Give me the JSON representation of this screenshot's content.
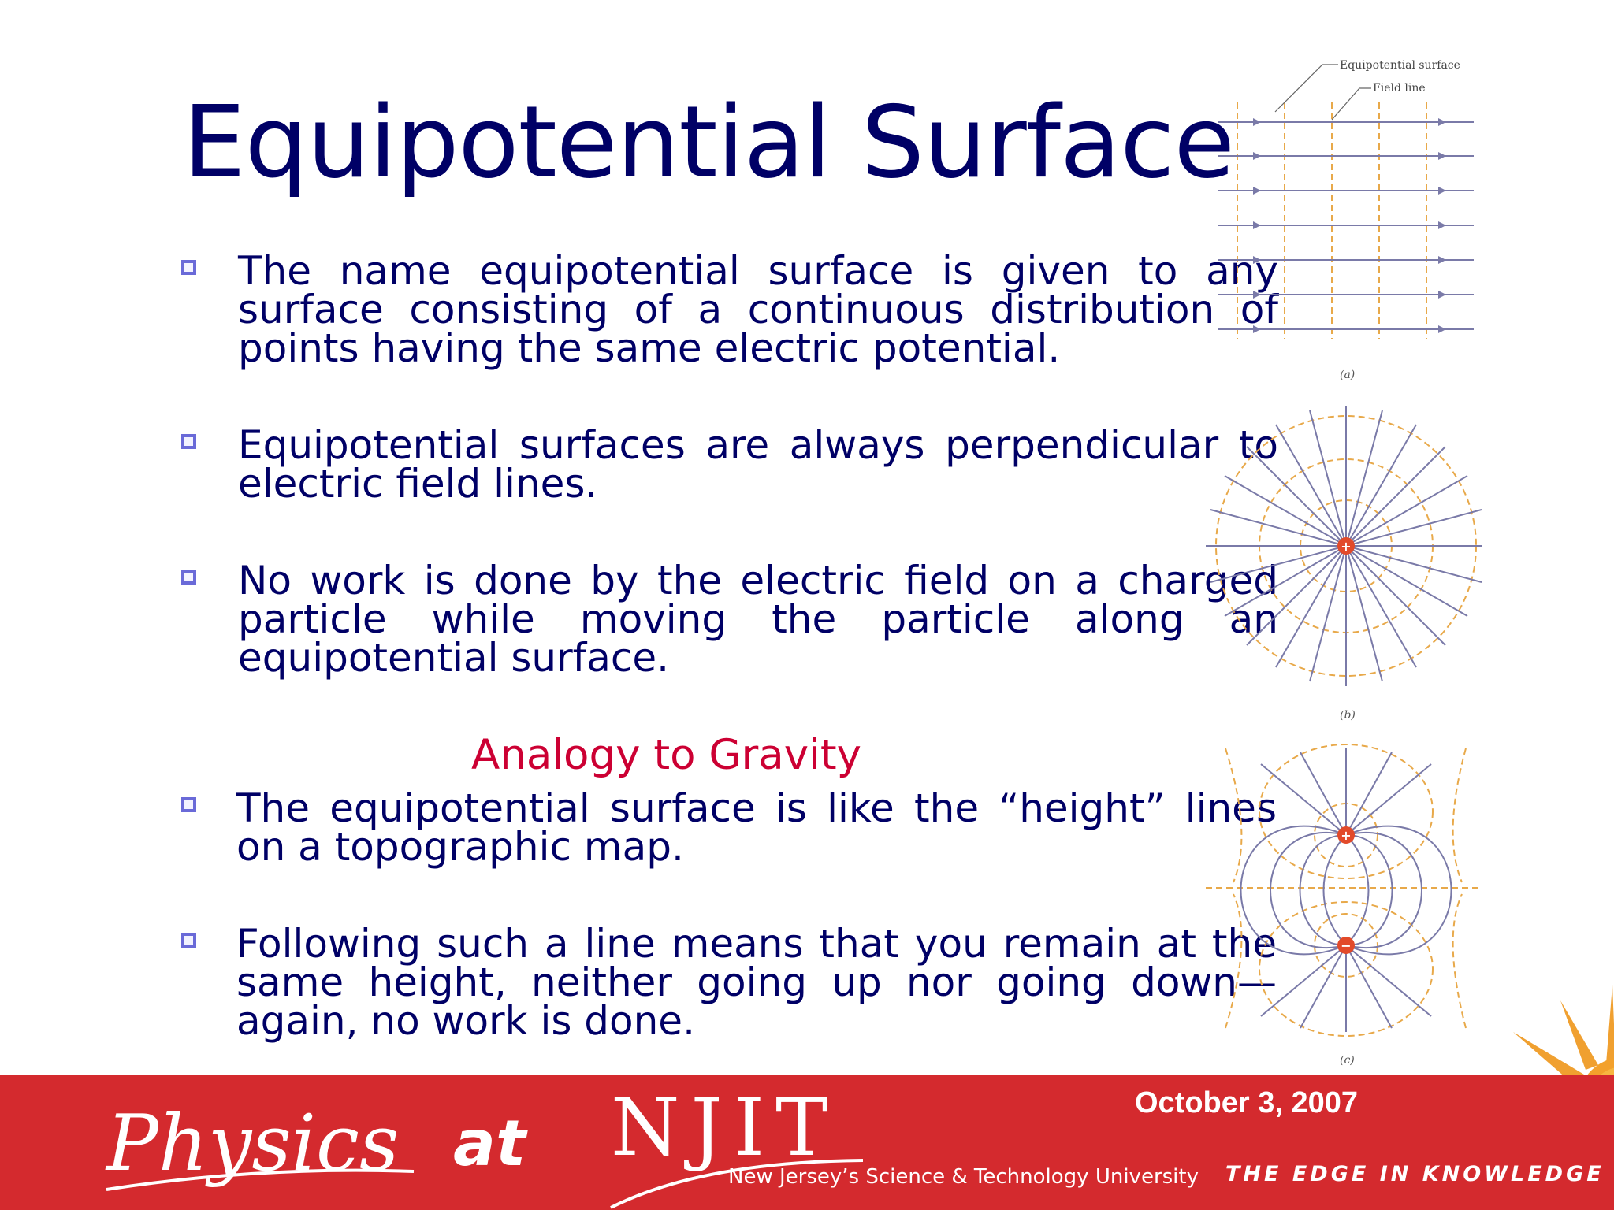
{
  "title": "Equipotential Surface",
  "bullets": [
    "The name equipotential surface is given to any surface consisting of a continuous distribution of points having the same electric potential.",
    "Equipotential surfaces are always perpendicular to electric field lines.",
    "No work is done by the electric field on a charged particle while moving the particle along an equipotential surface."
  ],
  "subheading": "Analogy to Gravity",
  "gravity_bullets": [
    "The equipotential surface is like the “height” lines on a topographic map.",
    "Following such a line means that you remain at the same height, neither going up nor going down—again, no work is done."
  ],
  "figure": {
    "label_equipotential": "Equipotential surface",
    "label_field_line": "Field line",
    "caption_a": "(a)",
    "caption_b": "(b)",
    "caption_c": "(c)",
    "charge_plus": "+",
    "charge_minus": "−"
  },
  "footer": {
    "physics": "Physics",
    "at": "at",
    "njit": "NJIT",
    "university": "New Jersey’s Science & Technology University",
    "date": "October 3, 2007",
    "tagline": "THE EDGE IN KNOWLEDGE"
  },
  "colors": {
    "title": "#000066",
    "subheading": "#cc0033",
    "footer_bg": "#d42a2e",
    "bullet_box": "#6a6ad8",
    "equipotential": "#e8a94a",
    "field_line": "#7a7aa8"
  }
}
